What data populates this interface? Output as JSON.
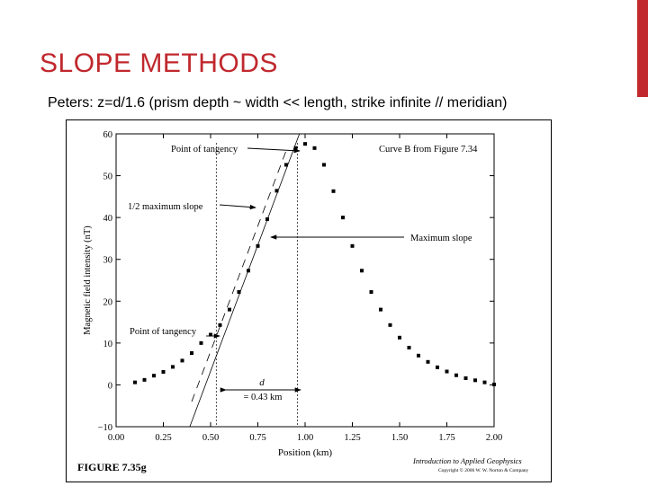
{
  "slide": {
    "title": "SLOPE METHODS",
    "subtitle": "Peters: z=d/1.6 (prism depth ~ width << length, strike infinite // meridian)",
    "accent_color": "#c0282d"
  },
  "figure": {
    "caption": "FIGURE 7.35g",
    "credit_title": "Introduction to Applied Geophysics",
    "credit_copyright": "Copyright © 2006 W. W. Norton & Company"
  },
  "chart_data": {
    "type": "scatter",
    "xlabel": "Position (km)",
    "ylabel": "Magnetic field intensity (nT)",
    "xlim": [
      0.0,
      2.0
    ],
    "ylim": [
      -10,
      60
    ],
    "xticks": [
      0.0,
      0.25,
      0.5,
      0.75,
      1.0,
      1.25,
      1.5,
      1.75,
      2.0
    ],
    "xtick_labels": [
      "0.00",
      "0.25",
      "0.50",
      "0.75",
      "1.00",
      "1.25",
      "1.50",
      "1.75",
      "2.00"
    ],
    "yticks": [
      -10,
      0,
      10,
      20,
      30,
      40,
      50,
      60
    ],
    "ytick_labels": [
      "−10",
      "0",
      "10",
      "20",
      "30",
      "40",
      "50",
      "60"
    ],
    "series": [
      {
        "x": [
          0.1,
          0.15,
          0.2,
          0.25,
          0.3,
          0.35,
          0.4,
          0.45,
          0.5,
          0.55,
          0.6,
          0.65,
          0.7,
          0.75,
          0.8,
          0.85,
          0.9,
          0.95,
          1.0,
          1.05,
          1.1,
          1.15,
          1.2,
          1.25,
          1.3,
          1.35,
          1.4,
          1.45,
          1.5,
          1.55,
          1.6,
          1.65,
          1.7,
          1.75,
          1.8,
          1.85,
          1.9,
          1.95,
          2.0
        ],
        "y": [
          0.6,
          1.2,
          2.2,
          3.1,
          4.3,
          5.8,
          7.6,
          10.0,
          12.0,
          14.3,
          18.0,
          22.2,
          27.3,
          33.2,
          39.6,
          46.4,
          52.6,
          56.6,
          57.6,
          56.6,
          52.6,
          46.3,
          40.0,
          33.2,
          27.3,
          22.2,
          18.0,
          14.3,
          11.3,
          8.9,
          7.0,
          5.5,
          4.2,
          3.2,
          2.3,
          1.6,
          1.1,
          0.6,
          0.1
        ]
      }
    ],
    "max_slope_line": {
      "x": [
        0.39,
        0.97
      ],
      "y": [
        -10,
        60
      ]
    },
    "half_slope_line": {
      "x": [
        0.4,
        0.9
      ],
      "y": [
        -4,
        56
      ]
    },
    "vertical_markers_x": [
      0.53,
      0.96
    ],
    "annotations": {
      "point_of_tangency_top": "Point of tangency",
      "curve_b": "Curve B from Figure 7.34",
      "half_max_slope": "1/2 maximum slope",
      "maximum_slope": "Maximum slope",
      "point_of_tangency_bottom": "Point of tangency",
      "d_symbol": "d",
      "d_value": "= 0.43 km"
    }
  }
}
